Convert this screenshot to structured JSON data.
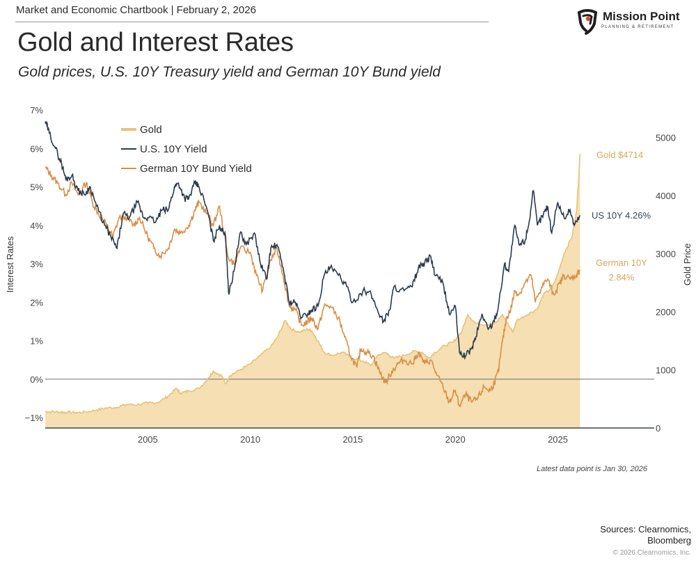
{
  "header": {
    "kicker": "Market and Economic Chartbook | February 2, 2026",
    "title": "Gold and Interest Rates",
    "subtitle": "Gold prices, U.S. 10Y Treasury yield and German 10Y Bund yield"
  },
  "logo": {
    "name": "Mission Point",
    "tagline": "PLANNING & RETIREMENT",
    "icon": "shield-target-icon",
    "accent": "#e0452c"
  },
  "footer": {
    "note": "Latest data point is Jan 30, 2026",
    "sources_line1": "Sources: Clearnomics,",
    "sources_line2": "Bloomberg",
    "copyright": "© 2026 Clearnomics, Inc."
  },
  "colors": {
    "gold_line": "#e8c27a",
    "gold_fill": "#f5dfb3",
    "us_yield": "#2a3a4d",
    "german_yield": "#d88f45",
    "gold_label": "#d9a75c",
    "zero_line": "#6b6b6b"
  },
  "chart_data": {
    "type": "line",
    "title": "Gold and Interest Rates",
    "subtitle": "Gold prices, U.S. 10Y Treasury yield and German 10Y Bund yield",
    "xlabel": "",
    "ylabel": "Interest Rates",
    "ylabel_right": "Gold Price",
    "xlim": [
      2000.0,
      2029.7
    ],
    "ylim": [
      -1.27,
      7.0
    ],
    "ylim_right": [
      0,
      5470
    ],
    "x_ticks": [
      2005,
      2010,
      2015,
      2020,
      2025
    ],
    "x_tick_labels": [
      "2005",
      "2010",
      "2015",
      "2020",
      "2025"
    ],
    "y_ticks": [
      -1,
      0,
      1,
      2,
      3,
      4,
      5,
      6,
      7
    ],
    "y_tick_labels": [
      "−1%",
      "0%",
      "1%",
      "2%",
      "3%",
      "4%",
      "5%",
      "6%",
      "7%"
    ],
    "y_right_ticks": [
      0,
      1000,
      2000,
      3000,
      4000,
      5000
    ],
    "y_right_tick_labels": [
      "0",
      "1000",
      "2000",
      "3000",
      "4000",
      "5000"
    ],
    "grid": false,
    "legend": {
      "position": "top-left",
      "entries": [
        "Gold",
        "U.S. 10Y Yield",
        "German 10Y Bund Yield"
      ]
    },
    "annotations": [
      {
        "series": "Gold",
        "text": "Gold $4714"
      },
      {
        "series": "U.S. 10Y Yield",
        "text": "US 10Y 4.26%"
      },
      {
        "series": "German 10Y Bund Yield",
        "text": "German 10Y",
        "text2": "2.84%"
      }
    ],
    "series": [
      {
        "name": "Gold",
        "axis": "right",
        "kind": "area",
        "x": [
          2000.0,
          2000.3,
          2000.7,
          2001.0,
          2001.5,
          2002.0,
          2002.5,
          2003.0,
          2003.5,
          2004.0,
          2004.5,
          2005.0,
          2005.5,
          2006.0,
          2006.4,
          2006.6,
          2007.0,
          2007.5,
          2008.0,
          2008.2,
          2008.6,
          2008.8,
          2009.0,
          2009.5,
          2010.0,
          2010.5,
          2011.0,
          2011.3,
          2011.7,
          2012.0,
          2012.4,
          2012.8,
          2013.0,
          2013.3,
          2013.6,
          2014.0,
          2014.5,
          2015.0,
          2015.5,
          2015.9,
          2016.2,
          2016.6,
          2017.0,
          2017.5,
          2018.0,
          2018.4,
          2018.7,
          2019.0,
          2019.5,
          2019.9,
          2020.3,
          2020.6,
          2021.0,
          2021.5,
          2022.0,
          2022.3,
          2022.8,
          2023.0,
          2023.5,
          2024.0,
          2024.3,
          2024.7,
          2025.0,
          2025.3,
          2025.7,
          2025.9,
          2026.0,
          2026.08
        ],
        "values": [
          285,
          280,
          275,
          270,
          265,
          275,
          310,
          345,
          360,
          405,
          400,
          430,
          440,
          550,
          680,
          600,
          640,
          680,
          880,
          980,
          900,
          760,
          900,
          1000,
          1100,
          1250,
          1400,
          1550,
          1850,
          1700,
          1650,
          1700,
          1670,
          1500,
          1300,
          1250,
          1300,
          1200,
          1150,
          1080,
          1250,
          1300,
          1200,
          1250,
          1320,
          1300,
          1200,
          1300,
          1420,
          1480,
          1650,
          1950,
          1800,
          1780,
          1820,
          1950,
          1650,
          1850,
          1950,
          2050,
          2300,
          2400,
          2650,
          3000,
          3300,
          3700,
          4200,
          4714
        ]
      },
      {
        "name": "U.S. 10Y Yield",
        "axis": "left",
        "x": [
          2000.0,
          2000.2,
          2000.5,
          2000.8,
          2001.0,
          2001.3,
          2001.6,
          2001.9,
          2002.2,
          2002.5,
          2002.9,
          2003.2,
          2003.5,
          2003.8,
          2004.1,
          2004.5,
          2004.8,
          2005.0,
          2005.4,
          2005.7,
          2006.0,
          2006.3,
          2006.5,
          2006.8,
          2007.0,
          2007.3,
          2007.5,
          2007.9,
          2008.2,
          2008.5,
          2008.8,
          2008.95,
          2009.2,
          2009.5,
          2009.8,
          2010.2,
          2010.5,
          2010.8,
          2011.0,
          2011.3,
          2011.6,
          2011.9,
          2012.2,
          2012.5,
          2012.8,
          2013.0,
          2013.3,
          2013.6,
          2013.9,
          2014.3,
          2014.6,
          2015.0,
          2015.5,
          2015.9,
          2016.2,
          2016.5,
          2016.8,
          2017.0,
          2017.5,
          2017.9,
          2018.2,
          2018.5,
          2018.8,
          2019.0,
          2019.4,
          2019.7,
          2020.0,
          2020.2,
          2020.5,
          2020.8,
          2021.0,
          2021.3,
          2021.6,
          2021.9,
          2022.1,
          2022.4,
          2022.6,
          2022.9,
          2023.1,
          2023.4,
          2023.6,
          2023.8,
          2024.0,
          2024.3,
          2024.5,
          2024.7,
          2025.0,
          2025.3,
          2025.6,
          2025.8,
          2026.08
        ],
        "values": [
          6.7,
          6.4,
          6.0,
          5.6,
          5.2,
          5.3,
          4.9,
          4.8,
          5.0,
          4.5,
          4.0,
          3.7,
          3.4,
          4.3,
          4.2,
          4.6,
          4.2,
          4.2,
          4.1,
          4.4,
          4.4,
          5.0,
          5.1,
          4.7,
          4.7,
          5.1,
          5.0,
          4.4,
          3.6,
          4.0,
          3.7,
          2.2,
          2.8,
          3.8,
          3.5,
          3.8,
          3.0,
          2.6,
          3.4,
          3.5,
          2.9,
          2.0,
          2.0,
          1.6,
          1.7,
          1.8,
          1.9,
          2.7,
          2.9,
          2.7,
          2.5,
          2.0,
          2.3,
          2.2,
          1.8,
          1.5,
          1.8,
          2.4,
          2.3,
          2.4,
          2.9,
          3.0,
          3.2,
          2.7,
          2.5,
          1.7,
          1.9,
          0.7,
          0.6,
          0.8,
          1.1,
          1.7,
          1.3,
          1.5,
          1.9,
          3.0,
          2.8,
          4.0,
          3.5,
          3.6,
          4.1,
          4.9,
          4.0,
          4.3,
          4.5,
          3.8,
          4.6,
          4.2,
          4.4,
          4.0,
          4.26
        ]
      },
      {
        "name": "German 10Y Bund Yield",
        "axis": "left",
        "x": [
          2000.0,
          2000.3,
          2000.6,
          2001.0,
          2001.3,
          2001.6,
          2002.0,
          2002.3,
          2002.6,
          2003.0,
          2003.3,
          2003.6,
          2004.0,
          2004.3,
          2004.6,
          2005.0,
          2005.3,
          2005.6,
          2006.0,
          2006.3,
          2006.6,
          2007.0,
          2007.3,
          2007.5,
          2007.9,
          2008.2,
          2008.5,
          2008.9,
          2009.2,
          2009.5,
          2010.0,
          2010.3,
          2010.6,
          2011.0,
          2011.3,
          2011.6,
          2011.9,
          2012.2,
          2012.5,
          2012.8,
          2013.0,
          2013.3,
          2013.6,
          2013.9,
          2014.3,
          2014.6,
          2014.9,
          2015.2,
          2015.4,
          2015.7,
          2016.0,
          2016.3,
          2016.6,
          2016.9,
          2017.2,
          2017.5,
          2017.9,
          2018.2,
          2018.5,
          2018.8,
          2019.1,
          2019.4,
          2019.7,
          2020.0,
          2020.2,
          2020.5,
          2020.8,
          2021.1,
          2021.4,
          2021.7,
          2021.9,
          2022.1,
          2022.3,
          2022.5,
          2022.7,
          2022.9,
          2023.1,
          2023.4,
          2023.7,
          2023.9,
          2024.2,
          2024.5,
          2024.8,
          2025.1,
          2025.3,
          2025.6,
          2025.9,
          2026.08
        ],
        "values": [
          5.5,
          5.3,
          5.1,
          4.8,
          5.1,
          4.8,
          5.1,
          4.6,
          4.3,
          4.0,
          3.7,
          4.2,
          4.2,
          4.0,
          4.2,
          3.7,
          3.4,
          3.2,
          3.4,
          3.9,
          3.8,
          4.0,
          4.4,
          4.6,
          4.3,
          4.0,
          4.5,
          3.2,
          3.0,
          3.4,
          3.3,
          2.7,
          2.3,
          3.1,
          3.4,
          2.7,
          1.9,
          1.8,
          1.4,
          1.5,
          1.6,
          1.3,
          1.9,
          1.9,
          1.6,
          1.1,
          0.6,
          0.3,
          0.8,
          0.7,
          0.6,
          0.2,
          -0.1,
          0.2,
          0.4,
          0.5,
          0.4,
          0.7,
          0.4,
          0.5,
          0.1,
          -0.2,
          -0.6,
          -0.3,
          -0.7,
          -0.4,
          -0.6,
          -0.5,
          -0.2,
          -0.3,
          -0.1,
          0.2,
          1.0,
          1.6,
          1.8,
          2.3,
          2.2,
          2.5,
          2.7,
          2.0,
          2.4,
          2.6,
          2.2,
          2.5,
          2.7,
          2.6,
          2.7,
          2.84
        ]
      }
    ]
  }
}
